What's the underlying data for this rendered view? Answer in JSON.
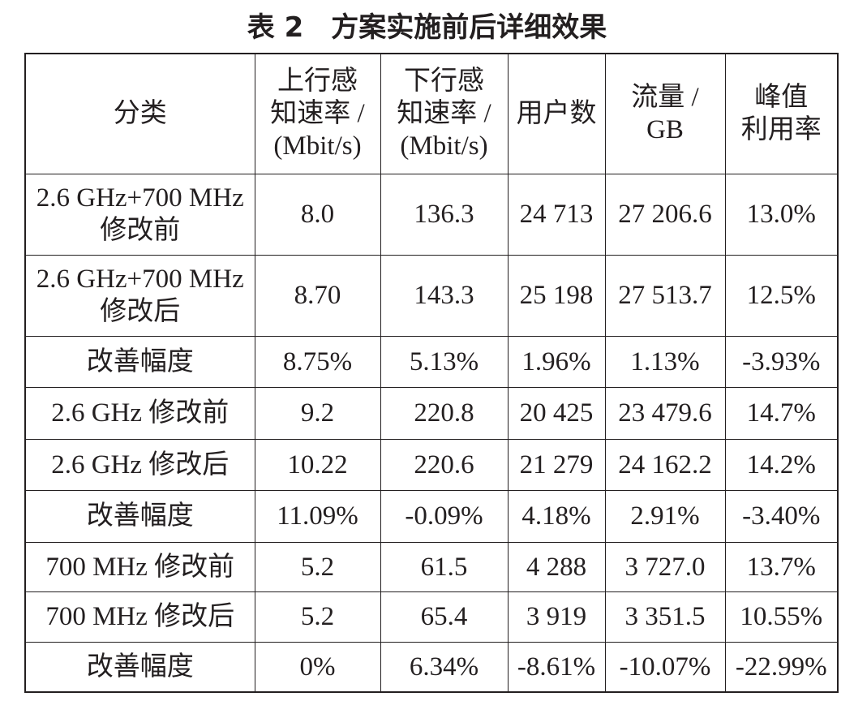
{
  "title": "表 2　方案实施前后详细效果",
  "table": {
    "header": [
      [
        "分类"
      ],
      [
        "上行感",
        "知速率 /",
        "(Mbit/s)"
      ],
      [
        "下行感",
        "知速率 /",
        "(Mbit/s)"
      ],
      [
        "用户数"
      ],
      [
        "流量 /",
        "GB"
      ],
      [
        "峰值",
        "利用率"
      ]
    ],
    "rows": [
      [
        [
          "2.6 GHz+700 MHz",
          "修改前"
        ],
        "8.0",
        "136.3",
        "24 713",
        "27 206.6",
        "13.0%"
      ],
      [
        [
          "2.6 GHz+700 MHz",
          "修改后"
        ],
        "8.70",
        "143.3",
        "25 198",
        "27 513.7",
        "12.5%"
      ],
      [
        [
          "改善幅度"
        ],
        "8.75%",
        "5.13%",
        "1.96%",
        "1.13%",
        "-3.93%"
      ],
      [
        [
          "2.6 GHz 修改前"
        ],
        "9.2",
        "220.8",
        "20 425",
        "23 479.6",
        "14.7%"
      ],
      [
        [
          "2.6 GHz 修改后"
        ],
        "10.22",
        "220.6",
        "21 279",
        "24 162.2",
        "14.2%"
      ],
      [
        [
          "改善幅度"
        ],
        "11.09%",
        "-0.09%",
        "4.18%",
        "2.91%",
        "-3.40%"
      ],
      [
        [
          "700 MHz 修改前"
        ],
        "5.2",
        "61.5",
        "4 288",
        "3 727.0",
        "13.7%"
      ],
      [
        [
          "700 MHz 修改后"
        ],
        "5.2",
        "65.4",
        "3 919",
        "3 351.5",
        "10.55%"
      ],
      [
        [
          "改善幅度"
        ],
        "0%",
        "6.34%",
        "-8.61%",
        "-10.07%",
        "-22.99%"
      ]
    ]
  }
}
